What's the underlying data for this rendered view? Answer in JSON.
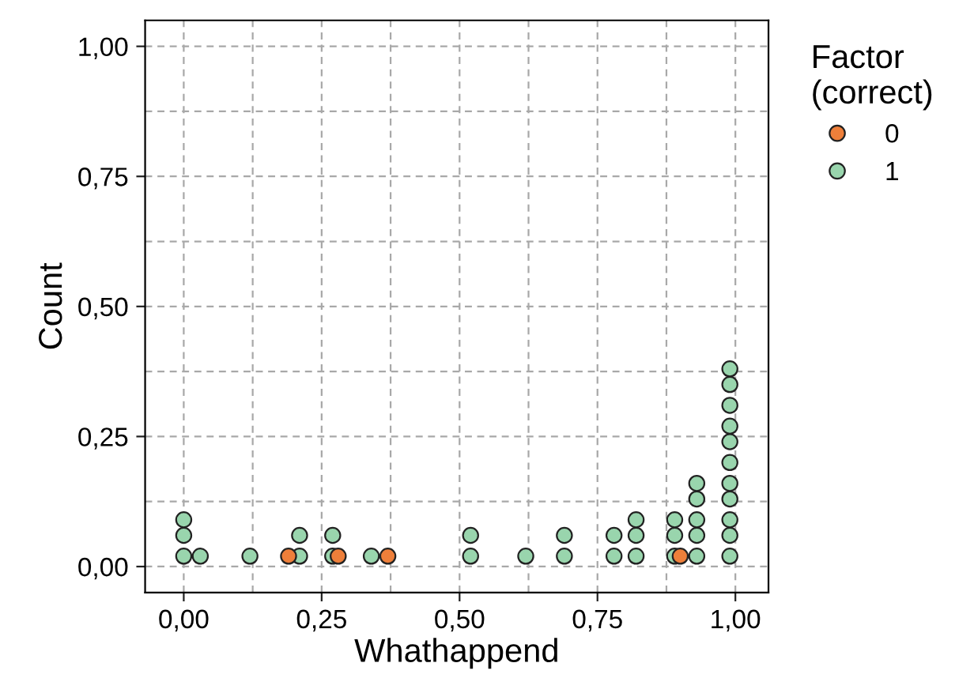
{
  "chart_data": {
    "type": "scatter",
    "xlabel": "Whathappend",
    "ylabel": "Count",
    "legend_title": "Factor\n(correct)",
    "series": [
      {
        "name": "0",
        "color": "#ee7f3a",
        "x": [
          0.19,
          0.28,
          0.37,
          0.9
        ],
        "values": [
          0.02,
          0.02,
          0.02,
          0.02
        ]
      },
      {
        "name": "1",
        "color": "#99d5ad",
        "x": [
          0.0,
          0.0,
          0.0,
          0.03,
          0.12,
          0.21,
          0.21,
          0.27,
          0.27,
          0.34,
          0.52,
          0.52,
          0.62,
          0.69,
          0.69,
          0.78,
          0.78,
          0.82,
          0.82,
          0.82,
          0.89,
          0.89,
          0.89,
          0.93,
          0.93,
          0.93,
          0.93,
          0.93,
          0.99,
          0.99,
          0.99,
          0.99,
          0.99,
          0.99,
          0.99,
          0.99,
          0.99,
          0.99,
          0.99
        ],
        "values": [
          0.02,
          0.06,
          0.09,
          0.02,
          0.02,
          0.02,
          0.06,
          0.02,
          0.06,
          0.02,
          0.02,
          0.06,
          0.02,
          0.02,
          0.06,
          0.02,
          0.06,
          0.02,
          0.06,
          0.09,
          0.02,
          0.06,
          0.09,
          0.02,
          0.06,
          0.09,
          0.13,
          0.16,
          0.02,
          0.06,
          0.09,
          0.13,
          0.16,
          0.2,
          0.24,
          0.27,
          0.31,
          0.35,
          0.38
        ]
      }
    ],
    "xlim": [
      -0.07,
      1.06
    ],
    "ylim": [
      -0.05,
      1.05
    ],
    "xticks": [
      {
        "value": 0,
        "label": "0,00"
      },
      {
        "value": 0.25,
        "label": "0,25"
      },
      {
        "value": 0.5,
        "label": "0,50"
      },
      {
        "value": 0.75,
        "label": "0,75"
      },
      {
        "value": 1,
        "label": "1,00"
      }
    ],
    "yticks": [
      {
        "value": 0,
        "label": "0,00"
      },
      {
        "value": 0.25,
        "label": "0,25"
      },
      {
        "value": 0.5,
        "label": "0,50"
      },
      {
        "value": 0.75,
        "label": "0,75"
      },
      {
        "value": 1,
        "label": "1,00"
      }
    ],
    "grid": true,
    "legend": "right",
    "marker": "circle"
  }
}
